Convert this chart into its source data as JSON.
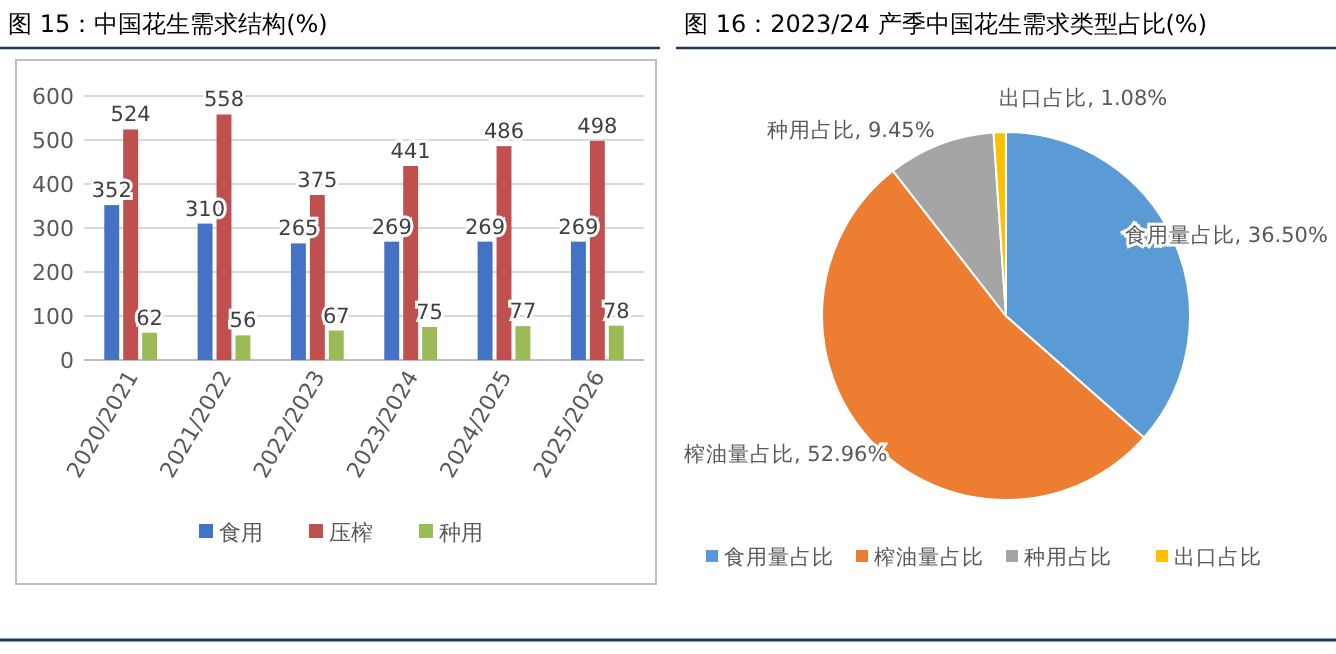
{
  "chart_data": [
    {
      "type": "bar",
      "title": "图 15：中国花生需求结构(%)",
      "categories": [
        "2020/2021",
        "2021/2022",
        "2022/2023",
        "2023/2024",
        "2024/2025",
        "2025/2026"
      ],
      "series": [
        {
          "name": "食用",
          "color": "#4472c4",
          "values": [
            352,
            310,
            265,
            269,
            269,
            269
          ]
        },
        {
          "name": "压榨",
          "color": "#c0504d",
          "values": [
            524,
            558,
            375,
            441,
            486,
            498
          ]
        },
        {
          "name": "种用",
          "color": "#9bbb59",
          "values": [
            62,
            56,
            67,
            75,
            77,
            78
          ]
        }
      ],
      "ylim": [
        0,
        600
      ],
      "yticks": [
        0,
        100,
        200,
        300,
        400,
        500,
        600
      ],
      "grid": "y",
      "legend": "bottom",
      "data_labels": true
    },
    {
      "type": "pie",
      "title": "图 16：2023/24 产季中国花生需求类型占比(%)",
      "categories": [
        "食用量占比",
        "榨油量占比",
        "种用占比",
        "出口占比"
      ],
      "values": [
        36.5,
        52.96,
        9.45,
        1.08
      ],
      "colors": [
        "#5b9bd5",
        "#ed7d31",
        "#a5a5a5",
        "#ffc000"
      ],
      "value_labels": [
        "食用量占比, 36.50%",
        "榨油量占比, 52.96%",
        "种用占比, 9.45%",
        "出口占比, 1.08%"
      ],
      "legend": "bottom"
    }
  ]
}
